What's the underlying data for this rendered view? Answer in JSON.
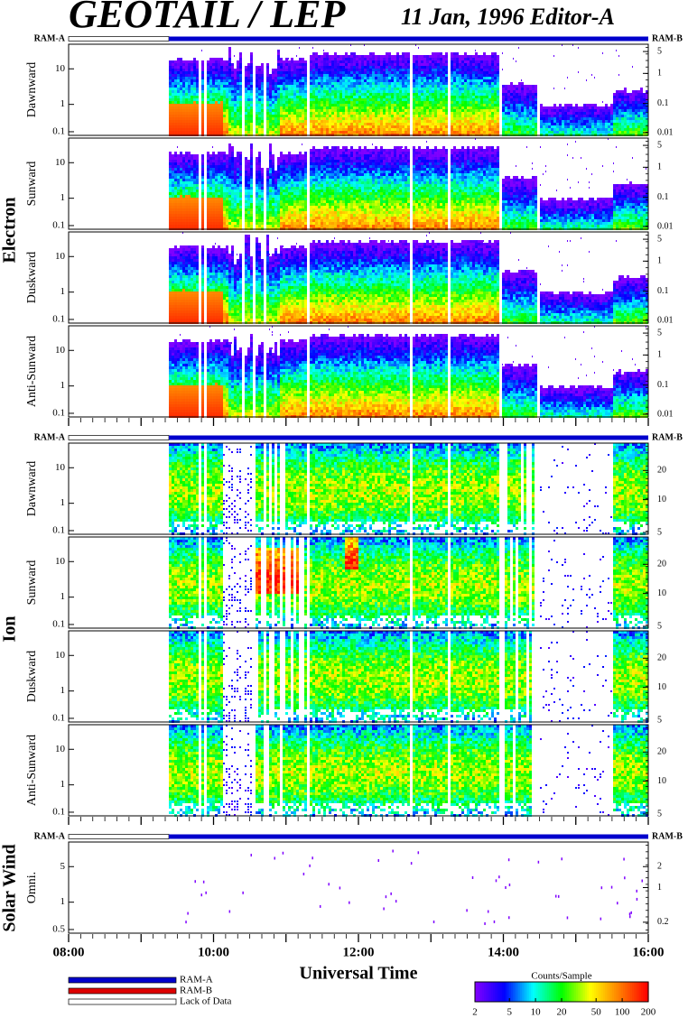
{
  "header": {
    "title": "GEOTAIL / LEP",
    "date_editor": "11 Jan, 1996   Editor-A"
  },
  "ram_labels": {
    "left": "RAM-A",
    "right": "RAM-B"
  },
  "groups": [
    {
      "name": "Electron"
    },
    {
      "name": "Ion"
    },
    {
      "name": "Solar Wind"
    }
  ],
  "xaxis": {
    "label": "Universal Time",
    "tick_labels": [
      "08:00",
      "10:00",
      "12:00",
      "14:00",
      "16:00"
    ]
  },
  "legend": {
    "items": [
      "RAM-A",
      "RAM-B",
      "Lack of Data"
    ],
    "colors": [
      "#0000cc",
      "#dd0000",
      "#ffffff"
    ]
  },
  "colorbar": {
    "title": "Counts/Sample",
    "tick_labels": [
      "2",
      "5",
      "10",
      "20",
      "50",
      "100",
      "200"
    ],
    "colors": [
      "#7f00ff",
      "#0000ff",
      "#00ffff",
      "#00ff00",
      "#ffff00",
      "#ff8000",
      "#ff0000"
    ]
  },
  "chart_data": [
    {
      "type": "heatmap",
      "group": "Electron",
      "ylabel": "Dawnward",
      "left_ticks": [
        "10",
        "1",
        "0.1"
      ],
      "right_ticks": [
        "5",
        "1",
        "0.1",
        "0.01"
      ],
      "x_range": [
        "08:00",
        "16:00"
      ],
      "data_start": "09:23"
    },
    {
      "type": "heatmap",
      "group": "Electron",
      "ylabel": "Sunward",
      "left_ticks": [
        "10",
        "1",
        "0.1"
      ],
      "right_ticks": [
        "5",
        "1",
        "0.1",
        "0.01"
      ],
      "x_range": [
        "08:00",
        "16:00"
      ],
      "data_start": "09:23"
    },
    {
      "type": "heatmap",
      "group": "Electron",
      "ylabel": "Duskward",
      "left_ticks": [
        "10",
        "1",
        "0.1"
      ],
      "right_ticks": [
        "5",
        "1",
        "0.1",
        "0.01"
      ],
      "x_range": [
        "08:00",
        "16:00"
      ],
      "data_start": "09:23"
    },
    {
      "type": "heatmap",
      "group": "Electron",
      "ylabel": "Anti-Sunward",
      "left_ticks": [
        "10",
        "1",
        "0.1"
      ],
      "right_ticks": [
        "5",
        "1",
        "0.1",
        "0.01"
      ],
      "x_range": [
        "08:00",
        "16:00"
      ],
      "data_start": "09:23"
    },
    {
      "type": "heatmap",
      "group": "Ion",
      "ylabel": "Dawnward",
      "left_ticks": [
        "10",
        "1",
        "0.1"
      ],
      "right_ticks": [
        "20",
        "10",
        "5"
      ],
      "x_range": [
        "08:00",
        "16:00"
      ],
      "data_start": "09:23"
    },
    {
      "type": "heatmap",
      "group": "Ion",
      "ylabel": "Sunward",
      "left_ticks": [
        "10",
        "1",
        "0.1"
      ],
      "right_ticks": [
        "20",
        "10",
        "5"
      ],
      "x_range": [
        "08:00",
        "16:00"
      ],
      "data_start": "09:23"
    },
    {
      "type": "heatmap",
      "group": "Ion",
      "ylabel": "Duskward",
      "left_ticks": [
        "10",
        "1",
        "0.1"
      ],
      "right_ticks": [
        "20",
        "10",
        "5"
      ],
      "x_range": [
        "08:00",
        "16:00"
      ],
      "data_start": "09:23"
    },
    {
      "type": "heatmap",
      "group": "Ion",
      "ylabel": "Anti-Sunward",
      "left_ticks": [
        "10",
        "1",
        "0.1"
      ],
      "right_ticks": [
        "20",
        "10",
        "5"
      ],
      "x_range": [
        "08:00",
        "16:00"
      ],
      "data_start": "09:23"
    },
    {
      "type": "heatmap",
      "group": "Solar Wind",
      "ylabel": "Omni.",
      "left_ticks": [
        "5",
        "1",
        "0.5"
      ],
      "right_ticks": [
        "2",
        "1",
        "0.2"
      ],
      "x_range": [
        "08:00",
        "16:00"
      ],
      "data_start": "09:23"
    }
  ]
}
